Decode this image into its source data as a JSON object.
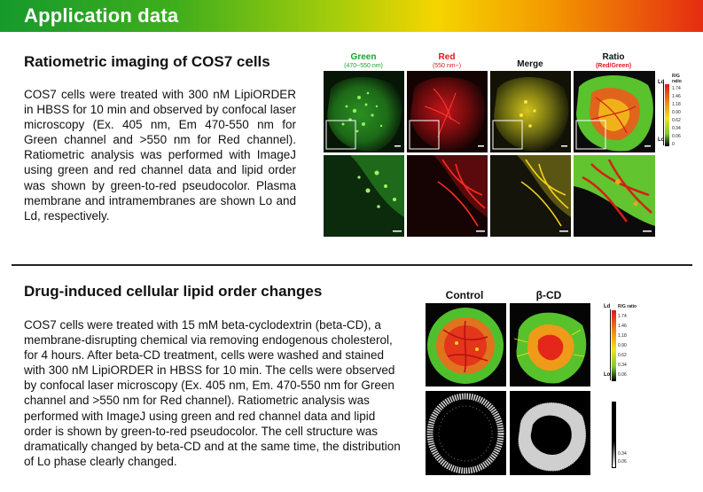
{
  "header": {
    "title": "Application data"
  },
  "section1": {
    "title": "Ratiometric imaging of COS7 cells",
    "body": "COS7 cells were treated with 300 nM LipiORDER in HBSS for 10 min and observed by confocal laser microscopy (Ex. 405 nm, Em 470-550 nm for Green channel and >550 nm for Red channel). Ratiometric analysis was performed with ImageJ using green and red channel data and lipid order was shown by green-to-red pseudocolor. Plasma membrane and intramembranes are shown Lo and Ld, respectively.",
    "columns": [
      {
        "label": "Green",
        "sub": "(470~550 nm)"
      },
      {
        "label": "Red",
        "sub": "(550 nm~)"
      },
      {
        "label": "Merge",
        "sub": ""
      },
      {
        "label": "Ratio",
        "sub": "(Red/Green)"
      }
    ],
    "scale": {
      "top": "Ld",
      "bottom": "Lo",
      "title_line1": "R/G",
      "title_line2": "ratio",
      "ticks": [
        "1.74",
        "1.46",
        "1.18",
        "0.90",
        "0.62",
        "0.34",
        "0.06",
        "0"
      ]
    }
  },
  "section2": {
    "title": "Drug-induced cellular lipid order changes",
    "body": "COS7 cells were treated with 15 mM beta-cyclodextrin (beta-CD), a membrane-disrupting chemical via removing endogenous cholesterol, for 4 hours. After beta-CD treatment, cells were washed and stained with 300 nM LipiORDER in HBSS for 10 min. The cells were observed by confocal laser microscopy (Ex. 405 nm, Em. 470-550 nm for Green channel and >550 nm for Red channel). Ratiometric analysis was performed with ImageJ using green and red channel data and lipid order is shown by green-to-red pseudocolor. The cell structure was dramatically changed by beta-CD and at the same time, the distribution of Lo phase clearly changed.",
    "columns": [
      {
        "label": "Control"
      },
      {
        "label": "β-CD"
      }
    ],
    "scale": {
      "top": "Ld",
      "bottom": "Lo",
      "title": "R/G ratio",
      "ticks": [
        "1.74",
        "1.46",
        "1.18",
        "0.90",
        "0.62",
        "0.34",
        "0.06"
      ],
      "ticks_bw": [
        "0.34",
        "0.06"
      ]
    }
  },
  "colors": {
    "green": "#1aa52b",
    "red": "#e0151c",
    "header_start": "#169a2c",
    "header_end": "#e52c12"
  }
}
